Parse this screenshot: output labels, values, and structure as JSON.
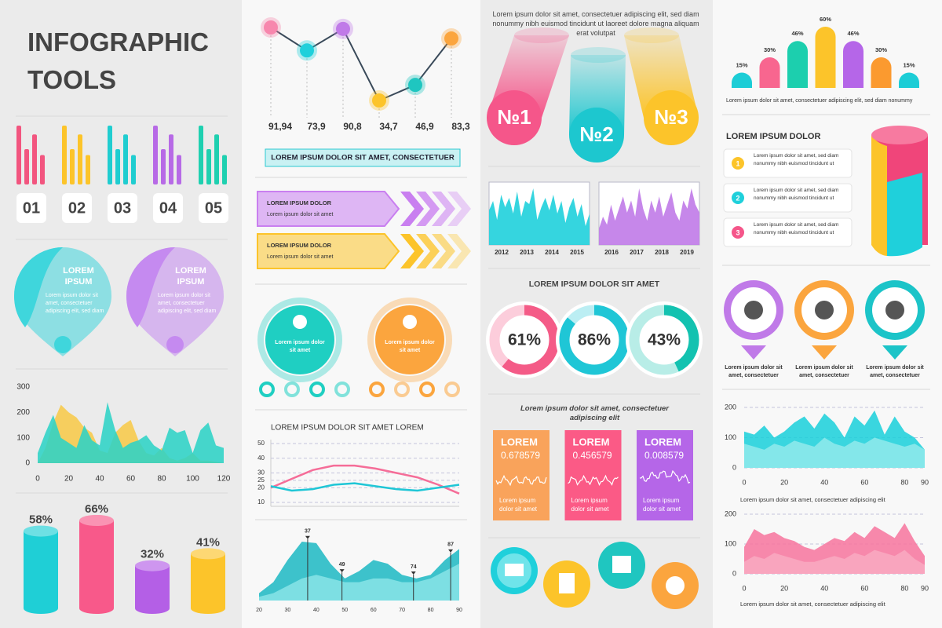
{
  "title": "INFOGRAPHIC TOOLS",
  "bar_groups": {
    "labels": [
      "01",
      "02",
      "03",
      "04",
      "05"
    ],
    "colors": [
      "#f2557f",
      "#fcc42a",
      "#20cdd0",
      "#b76ae6",
      "#1fd0b0"
    ]
  },
  "pins": [
    {
      "title": "LOREM IPSUM",
      "text": "Lorem ipsum dolor sit amet, consectetuer adipiscing elit, sed diam",
      "color": "#3fd6dc"
    },
    {
      "title": "LOREM IPSUM",
      "text": "Lorem ipsum dolor sit amet, consectetuer adipiscing elit, sed diam",
      "color": "#c58af0"
    }
  ],
  "area_chart_1": {
    "type": "area",
    "ylim": [
      0,
      300
    ],
    "yticks": [
      0,
      100,
      200,
      300
    ],
    "xlim": [
      0,
      120
    ],
    "xticks": [
      0,
      20,
      40,
      60,
      80,
      100,
      120
    ],
    "x": [
      0,
      5,
      10,
      15,
      20,
      25,
      30,
      35,
      40,
      45,
      50,
      55,
      60,
      65,
      70,
      75,
      80,
      85,
      90,
      95,
      100,
      105,
      110,
      115,
      120
    ],
    "series": [
      {
        "color": "#f7c94a",
        "values": [
          0,
          60,
          160,
          230,
          200,
          180,
          140,
          120,
          50,
          40,
          120,
          150,
          170,
          90,
          40,
          30,
          60,
          20,
          10,
          20,
          40,
          10,
          10,
          5,
          0
        ]
      },
      {
        "color": "#2ed3c6",
        "values": [
          40,
          120,
          190,
          100,
          80,
          60,
          150,
          90,
          70,
          240,
          130,
          60,
          80,
          90,
          110,
          70,
          50,
          140,
          120,
          130,
          40,
          130,
          160,
          70,
          60
        ]
      }
    ]
  },
  "cylinders": {
    "values": [
      58,
      66,
      32,
      41
    ],
    "value_labels": [
      "58%",
      "66%",
      "32%",
      "41%"
    ],
    "colors": [
      "#1fcfd6",
      "#f8598a",
      "#b45fe6",
      "#fcc42a"
    ]
  },
  "line_chart_1": {
    "values": [
      91.94,
      73.9,
      90.8,
      34.7,
      46.9,
      83.3
    ],
    "value_labels": [
      "91,94",
      "73,9",
      "90,8",
      "34,7",
      "46,9",
      "83,3"
    ],
    "colors": [
      "#f787ad",
      "#1fd0db",
      "#c07ae8",
      "#fcc42a",
      "#1fc6c0",
      "#fba53e"
    ]
  },
  "button": "LOREM IPSUM DOLOR SIT AMET, CONSECTETUER",
  "banners": [
    {
      "title": "LOREM IPSUM DOLOR",
      "text": "Lorem ipsum dolor sit amet",
      "color": "#c97ff0"
    },
    {
      "title": "LOREM IPSUM DOLOR",
      "text": "Lorem ipsum dolor sit amet",
      "color": "#fcc42a"
    }
  ],
  "badges": [
    {
      "text": "Lorem ipsum dolor sit amet",
      "color": "#1fcfc2"
    },
    {
      "text": "Lorem ipsum dolor sit amet",
      "color": "#fba53e"
    }
  ],
  "line_chart_2": {
    "type": "line",
    "title": "LOREM IPSUM DOLOR SIT AMET LOREM",
    "ylim": [
      10,
      50
    ],
    "yticks": [
      10,
      20,
      25,
      30,
      40,
      50
    ],
    "grid": true,
    "series": [
      {
        "color": "#f56d98",
        "values": [
          20,
          26,
          32,
          35,
          35,
          33,
          30,
          27,
          22,
          16
        ]
      },
      {
        "color": "#1fc6d6",
        "values": [
          21,
          18,
          19,
          22,
          23,
          21,
          19,
          18,
          20,
          22
        ]
      }
    ]
  },
  "area_chart_2": {
    "type": "area",
    "xlim": [
      20,
      90
    ],
    "xticks": [
      20,
      30,
      40,
      50,
      60,
      70,
      80,
      90
    ],
    "x": [
      20,
      25,
      30,
      35,
      40,
      45,
      50,
      55,
      60,
      65,
      70,
      75,
      80,
      85,
      90
    ],
    "series": [
      {
        "color": "#22b9c4",
        "values": [
          10,
          25,
          55,
          80,
          78,
          50,
          30,
          40,
          55,
          50,
          35,
          30,
          35,
          55,
          70
        ]
      },
      {
        "color": "#86e3e6",
        "values": [
          5,
          10,
          20,
          30,
          35,
          30,
          25,
          25,
          30,
          30,
          25,
          25,
          30,
          40,
          50
        ]
      }
    ],
    "markers": [
      37,
      49,
      74,
      87
    ]
  },
  "intro_text": "Lorem ipsum dolor sit amet, consectetuer adipiscing elit, sed diam nonummy nibh euismod tincidunt ut laoreet dolore magna aliquam erat volutpat",
  "rankings": [
    {
      "label": "№1",
      "color": "#f5568a"
    },
    {
      "label": "№2",
      "color": "#1dc7cf"
    },
    {
      "label": "№3",
      "color": "#fcc42a"
    }
  ],
  "mini_charts": [
    {
      "years": [
        "2012",
        "2013",
        "2014",
        "2015"
      ],
      "color": "#1fd0db",
      "values": [
        55,
        70,
        40,
        80,
        60,
        75,
        50,
        85,
        45,
        70,
        65,
        90,
        40,
        60,
        75,
        55,
        80,
        50,
        70,
        35,
        60,
        75,
        45,
        65,
        30,
        50
      ]
    },
    {
      "years": [
        "2016",
        "2017",
        "2018",
        "2019"
      ],
      "color": "#c07ae8",
      "values": [
        20,
        35,
        25,
        50,
        30,
        45,
        60,
        40,
        55,
        35,
        70,
        45,
        30,
        55,
        40,
        60,
        35,
        50,
        65,
        40,
        30,
        55,
        45,
        70,
        50,
        40
      ]
    }
  ],
  "donut_title": "LOREM IPSUM DOLOR SIT AMET",
  "donuts": {
    "values": [
      61,
      86,
      43
    ],
    "value_labels": [
      "61%",
      "86%",
      "43%"
    ],
    "colors": [
      "#f45b87",
      "#1fc6d6",
      "#13c2b0"
    ]
  },
  "cards_caption": "Lorem ipsum dolor sit amet, consectetuer adipiscing elit",
  "cards": [
    {
      "title": "LOREM",
      "value": 0.678579,
      "text": "Lorem ipsum dolor sit amet",
      "color": "#f9a35b"
    },
    {
      "title": "LOREM",
      "value": 0.456579,
      "text": "Lorem ipsum dolor sit amet",
      "color": "#fb5a86"
    },
    {
      "title": "LOREM",
      "value": 0.008579,
      "text": "Lorem ipsum dolor sit amet",
      "color": "#b566e8"
    }
  ],
  "pill_bars": {
    "values": [
      15,
      30,
      46,
      60,
      46,
      30,
      15
    ],
    "value_labels": [
      "15%",
      "30%",
      "46%",
      "60%",
      "46%",
      "30%",
      "15%"
    ],
    "colors": [
      "#1ccdd6",
      "#f8668f",
      "#1ccfae",
      "#fcc42a",
      "#b566e8",
      "#fb9a2f",
      "#1ccdd6"
    ],
    "caption": "Lorem ipsum dolor sit amet, consectetuer adipiscing elit, sed diam nonummy"
  },
  "list": {
    "title": "LOREM IPSUM DOLOR",
    "items": [
      {
        "number": 1,
        "text": "Lorem ipsum dolor sit amet, sed diam nonummy nibh euismod tincidunt ut",
        "color": "#fcc42a"
      },
      {
        "number": 2,
        "text": "Lorem ipsum dolor sit amet, sed diam nonummy nibh euismod tincidunt ut",
        "color": "#1fd0db"
      },
      {
        "number": 3,
        "text": "Lorem ipsum dolor sit amet, sed diam nonummy nibh euismod tincidunt ut",
        "color": "#f5568a"
      }
    ]
  },
  "pin_icons": [
    {
      "text": "Lorem ipsum dolor sit amet, consectetuer",
      "color": "#c07ae8"
    },
    {
      "text": "Lorem ipsum dolor sit amet, consectetuer",
      "color": "#fba53e"
    },
    {
      "text": "Lorem ipsum dolor sit amet, consectetuer",
      "color": "#1cc4c8"
    }
  ],
  "area_chart_3": {
    "type": "area",
    "ylim": [
      0,
      200
    ],
    "yticks": [
      0,
      100,
      200
    ],
    "grid": true,
    "xlim": [
      0,
      90
    ],
    "xticks": [
      0,
      20,
      40,
      60,
      80,
      90
    ],
    "x": [
      0,
      5,
      10,
      15,
      20,
      25,
      30,
      35,
      40,
      45,
      50,
      55,
      60,
      65,
      70,
      75,
      80,
      85,
      90
    ],
    "series": [
      {
        "color": "#1fd0db",
        "values": [
          120,
          110,
          140,
          100,
          120,
          150,
          170,
          130,
          180,
          150,
          100,
          170,
          140,
          190,
          110,
          170,
          120,
          100,
          60
        ]
      },
      {
        "color": "#8ee9ec",
        "values": [
          80,
          70,
          60,
          80,
          70,
          90,
          80,
          70,
          100,
          80,
          70,
          90,
          80,
          100,
          90,
          80,
          70,
          80,
          60
        ]
      }
    ],
    "caption": "Lorem ipsum dolor sit amet, consectetuer adipiscing elit"
  },
  "area_chart_4": {
    "type": "area",
    "ylim": [
      0,
      200
    ],
    "yticks": [
      0,
      100,
      200
    ],
    "grid": true,
    "xlim": [
      0,
      90
    ],
    "xticks": [
      0,
      20,
      40,
      60,
      80,
      90
    ],
    "x": [
      0,
      5,
      10,
      15,
      20,
      25,
      30,
      35,
      40,
      45,
      50,
      55,
      60,
      65,
      70,
      75,
      80,
      85,
      90
    ],
    "series": [
      {
        "color": "#f6789f",
        "values": [
          90,
          150,
          130,
          140,
          120,
          110,
          90,
          80,
          100,
          120,
          110,
          140,
          120,
          160,
          140,
          120,
          170,
          110,
          60
        ]
      },
      {
        "color": "#f9a8c0",
        "values": [
          40,
          60,
          50,
          70,
          60,
          50,
          40,
          40,
          50,
          60,
          50,
          70,
          60,
          80,
          70,
          60,
          80,
          50,
          30
        ]
      }
    ],
    "caption": "Lorem ipsum dolor sit amet, consectetuer adipiscing elit"
  }
}
